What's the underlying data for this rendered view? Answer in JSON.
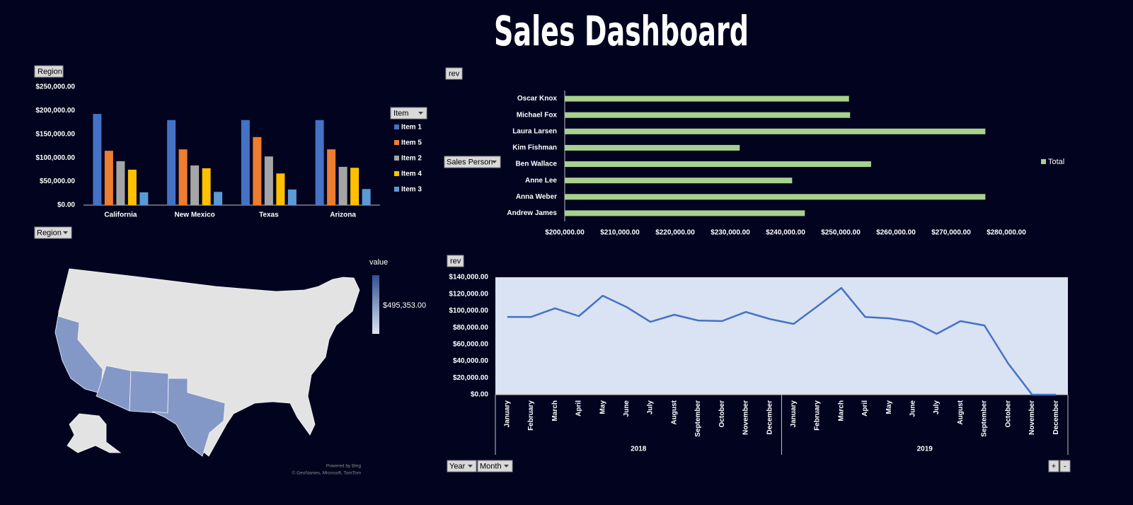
{
  "header": {
    "title": "Sales Dashboard"
  },
  "controls": {
    "region_top": "Region",
    "region_bottom": "Region",
    "item": "Item",
    "rev_top": "rev",
    "sales_person": "Sales Person",
    "rev_bottom": "rev",
    "year": "Year",
    "month": "Month",
    "zoom_in": "+",
    "zoom_out": "-"
  },
  "chart_data": [
    {
      "type": "bar",
      "categories": [
        "California",
        "New Mexico",
        "Texas",
        "Arizona"
      ],
      "series": [
        {
          "name": "Item 1",
          "color": "#4472c4",
          "values": [
            193000,
            180000,
            180000,
            180000
          ]
        },
        {
          "name": "Item 5",
          "color": "#ed7d31",
          "values": [
            115000,
            118000,
            144000,
            118000
          ]
        },
        {
          "name": "Item 2",
          "color": "#a5a5a5",
          "values": [
            93000,
            84000,
            103000,
            81000
          ]
        },
        {
          "name": "Item 4",
          "color": "#ffc000",
          "values": [
            75000,
            78000,
            67000,
            79000
          ]
        },
        {
          "name": "Item 3",
          "color": "#5b9bd5",
          "values": [
            27000,
            28000,
            33000,
            34000
          ]
        }
      ],
      "ylim": [
        0,
        250000
      ],
      "yticks": [
        {
          "value": 0,
          "label": "$0.00"
        },
        {
          "value": 50000,
          "label": "$50,000.00"
        },
        {
          "value": 100000,
          "label": "$100,000.00"
        },
        {
          "value": 150000,
          "label": "$150,000.00"
        },
        {
          "value": 200000,
          "label": "$200,000.00"
        },
        {
          "value": 250000,
          "label": "$250,000.00"
        }
      ],
      "legend": "right"
    },
    {
      "type": "bar",
      "orientation": "horizontal",
      "categories": [
        "Oscar Knox",
        "Michael Fox",
        "Laura Larsen",
        "Kim Fishman",
        "Ben Wallace",
        "Anne Lee",
        "Anna Weber",
        "Andrew James"
      ],
      "series": [
        {
          "name": "Total",
          "color": "#a9d18e",
          "values": [
            251500,
            251700,
            276200,
            231700,
            255500,
            241200,
            276200,
            243500
          ]
        }
      ],
      "xlim": [
        200000,
        285000
      ],
      "xticks": [
        {
          "value": 200000,
          "label": "$200,000.00"
        },
        {
          "value": 210000,
          "label": "$210,000.00"
        },
        {
          "value": 220000,
          "label": "$220,000.00"
        },
        {
          "value": 230000,
          "label": "$230,000.00"
        },
        {
          "value": 240000,
          "label": "$240,000.00"
        },
        {
          "value": 250000,
          "label": "$250,000.00"
        },
        {
          "value": 260000,
          "label": "$260,000.00"
        },
        {
          "value": 270000,
          "label": "$270,000.00"
        },
        {
          "value": 280000,
          "label": "$280,000.00"
        }
      ],
      "legend": "right"
    },
    {
      "type": "map",
      "legend_title": "value",
      "color_scale": {
        "colors": [
          "#dde5f3",
          "#2f4f8f"
        ],
        "max": {
          "value": 495353,
          "label": "$495,353.00"
        }
      },
      "attribution": [
        "Powered by Bing",
        "© GeoNames, Microsoft, TomTom"
      ]
    },
    {
      "type": "line",
      "categories": [
        "January",
        "February",
        "March",
        "April",
        "May",
        "June",
        "July",
        "August",
        "September",
        "October",
        "November",
        "December",
        "January",
        "February",
        "March",
        "April",
        "May",
        "June",
        "July",
        "August",
        "September",
        "October",
        "November",
        "December"
      ],
      "groups": [
        "2018",
        "2019"
      ],
      "values": [
        92700,
        92700,
        103000,
        93600,
        118000,
        104500,
        86800,
        95300,
        88500,
        87700,
        98600,
        90200,
        84300,
        105400,
        127300,
        92700,
        91000,
        86800,
        72500,
        87700,
        82600,
        37100,
        0,
        0
      ],
      "color": "#4472c4",
      "plot_background": "#dae3f3",
      "ylim": [
        0,
        140000
      ],
      "yticks": [
        {
          "value": 0,
          "label": "$0.00"
        },
        {
          "value": 20000,
          "label": "$20,000.00"
        },
        {
          "value": 40000,
          "label": "$40,000.00"
        },
        {
          "value": 60000,
          "label": "$60,000.00"
        },
        {
          "value": 80000,
          "label": "$80,000.00"
        },
        {
          "value": 100000,
          "label": "$100,000.00"
        },
        {
          "value": 120000,
          "label": "$120,000.00"
        },
        {
          "value": 140000,
          "label": "$140,000.00"
        }
      ]
    }
  ]
}
